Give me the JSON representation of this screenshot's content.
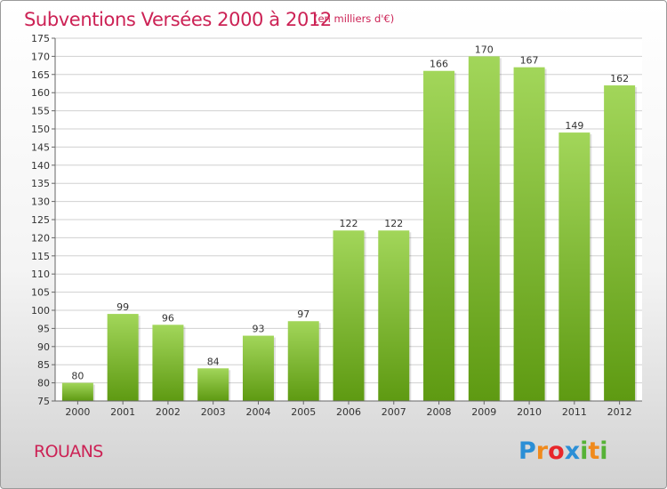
{
  "title": "Subventions Versées 2000 à 2012",
  "subtitle": "(en milliers d'€)",
  "commune": "ROUANS",
  "logo": {
    "text": "Proxiti",
    "letters": [
      "P",
      "r",
      "o",
      "x",
      "i",
      "t",
      "i"
    ],
    "colors": [
      "#2b8fd6",
      "#f08a1c",
      "#e8262a",
      "#2b8fd6",
      "#56b237",
      "#f08a1c",
      "#56b237"
    ]
  },
  "colors": {
    "bar_light": "#a2d65a",
    "bar_dark": "#5e9a12",
    "title": "#cc2255",
    "grid": "#d0d0d0"
  },
  "chart_data": {
    "type": "bar",
    "categories": [
      "2000",
      "2001",
      "2002",
      "2003",
      "2004",
      "2005",
      "2006",
      "2007",
      "2008",
      "2009",
      "2010",
      "2011",
      "2012"
    ],
    "values": [
      80,
      99,
      96,
      84,
      93,
      97,
      122,
      122,
      166,
      170,
      167,
      149,
      162
    ],
    "ylim": [
      75,
      175
    ],
    "yticks": [
      75,
      80,
      85,
      90,
      95,
      100,
      105,
      110,
      115,
      120,
      125,
      130,
      135,
      140,
      145,
      150,
      155,
      160,
      165,
      170,
      175
    ],
    "grid": true,
    "data_labels": true
  }
}
